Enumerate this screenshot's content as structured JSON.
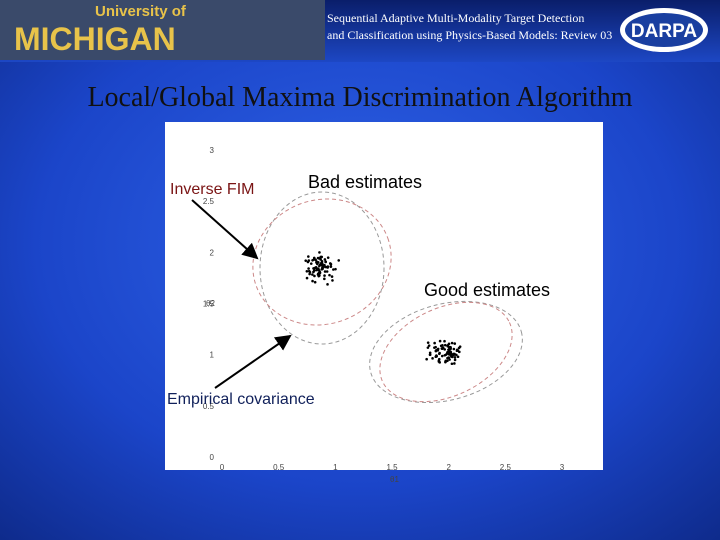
{
  "header": {
    "university": "University of",
    "logo": "MICHIGAN",
    "subtitle_lines": [
      "Sequential Adaptive Multi-Modality Target Detection",
      "and Classification using Physics-Based Models: Review 03"
    ],
    "sponsor": "DARPA"
  },
  "title": "Local/Global Maxima Discrimination Algorithm",
  "figure": {
    "y_ticks": [
      "3",
      "2.5",
      "2",
      "1.5",
      "1",
      "0.5",
      "0"
    ],
    "x_ticks": [
      "0",
      "0.5",
      "1",
      "1.5",
      "2",
      "2.5",
      "3"
    ],
    "y_label": "θ2",
    "x_label": "θ1",
    "annotations": [
      "Inverse FIM",
      "Bad estimates",
      "Good estimates",
      "Empirical covariance"
    ]
  }
}
